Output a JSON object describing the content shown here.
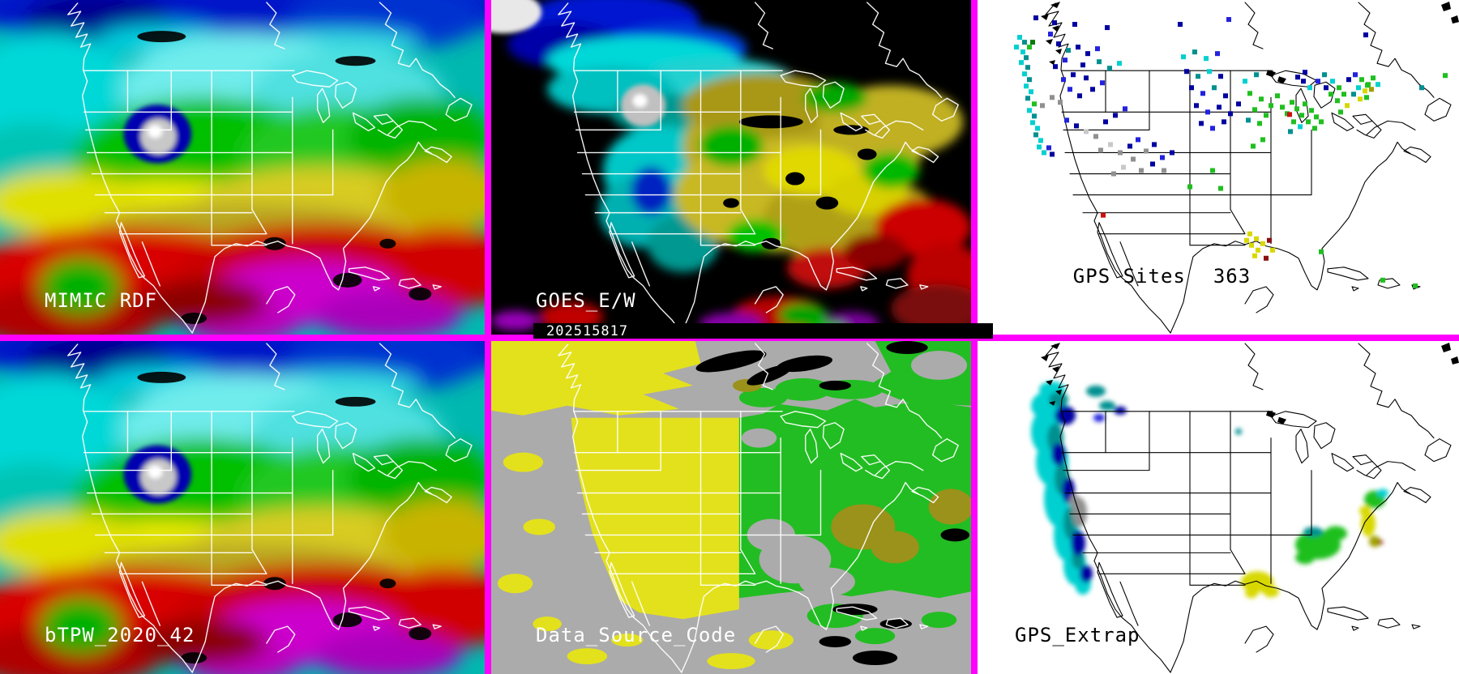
{
  "window": {
    "divider_color": "#ff00ff",
    "layout": "3x2 satellite water-vapor product mosaic"
  },
  "panels": {
    "mimic": {
      "label": "MIMIC RDF"
    },
    "goes": {
      "label": "GOES_E/W",
      "timestamp": "202515817"
    },
    "gps_sites": {
      "label": "GPS Sites",
      "count": "363"
    },
    "btpw": {
      "label": "bTPW_2020_42"
    },
    "data_source": {
      "label": "Data_Source_Code"
    },
    "gps_extrap": {
      "label": "GPS_Extrap"
    }
  },
  "palette": {
    "nv": "#0000a0",
    "bl": "#2222dd",
    "tl": "#009090",
    "cy": "#00d0d0",
    "gn": "#1fbf1f",
    "dg": "#0a7a0a",
    "gy": "#909090",
    "lg": "#c8c8c8",
    "yl": "#d8d800",
    "og": "#a0a000",
    "rd": "#cc1111",
    "dr": "#8b1010",
    "divider": "#ff00ff",
    "dsc_gray": "#ababab",
    "dsc_yellow": "#e3e11c",
    "dsc_green": "#22bd22",
    "dsc_olive": "#9a921a"
  },
  "gps_sites_dots": [
    [
      52,
      46,
      "cy"
    ],
    [
      58,
      52,
      "tl"
    ],
    [
      48,
      58,
      "cy"
    ],
    [
      56,
      64,
      "cy"
    ],
    [
      64,
      58,
      "gn"
    ],
    [
      68,
      52,
      "dg"
    ],
    [
      60,
      71,
      "tl"
    ],
    [
      54,
      77,
      "cy"
    ],
    [
      62,
      83,
      "tl"
    ],
    [
      58,
      91,
      "cy"
    ],
    [
      64,
      98,
      "tl"
    ],
    [
      60,
      106,
      "cy"
    ],
    [
      66,
      113,
      "cy"
    ],
    [
      62,
      121,
      "tl"
    ],
    [
      70,
      128,
      "gn"
    ],
    [
      64,
      136,
      "cy"
    ],
    [
      70,
      143,
      "tl"
    ],
    [
      68,
      151,
      "cy"
    ],
    [
      74,
      158,
      "cy"
    ],
    [
      72,
      166,
      "tl"
    ],
    [
      78,
      173,
      "cy"
    ],
    [
      76,
      181,
      "cy"
    ],
    [
      82,
      188,
      "cy"
    ],
    [
      88,
      182,
      "bl"
    ],
    [
      92,
      190,
      "nv"
    ],
    [
      80,
      130,
      "gy"
    ],
    [
      92,
      120,
      "gy"
    ],
    [
      72,
      22,
      "nv"
    ],
    [
      95,
      28,
      "nv"
    ],
    [
      120,
      30,
      "nv"
    ],
    [
      160,
      34,
      "nv"
    ],
    [
      250,
      30,
      "nv"
    ],
    [
      310,
      24,
      "bl"
    ],
    [
      90,
      42,
      "bl"
    ],
    [
      100,
      54,
      "nv"
    ],
    [
      112,
      62,
      "tl"
    ],
    [
      124,
      58,
      "nv"
    ],
    [
      136,
      66,
      "nv"
    ],
    [
      148,
      60,
      "bl"
    ],
    [
      108,
      74,
      "bl"
    ],
    [
      96,
      82,
      "nv"
    ],
    [
      130,
      80,
      "nv"
    ],
    [
      150,
      76,
      "tl"
    ],
    [
      163,
      84,
      "tl"
    ],
    [
      175,
      78,
      "cy"
    ],
    [
      118,
      92,
      "nv"
    ],
    [
      106,
      98,
      "bl"
    ],
    [
      134,
      96,
      "nv"
    ],
    [
      114,
      110,
      "bl"
    ],
    [
      126,
      118,
      "nv"
    ],
    [
      102,
      126,
      "gy"
    ],
    [
      142,
      110,
      "nv"
    ],
    [
      154,
      102,
      "bl"
    ],
    [
      110,
      148,
      "bl"
    ],
    [
      122,
      155,
      "nv"
    ],
    [
      134,
      162,
      "lg"
    ],
    [
      146,
      168,
      "gy"
    ],
    [
      158,
      150,
      "nv"
    ],
    [
      170,
      142,
      "nv"
    ],
    [
      182,
      134,
      "bl"
    ],
    [
      152,
      185,
      "gy"
    ],
    [
      164,
      178,
      "lg"
    ],
    [
      176,
      188,
      "gy"
    ],
    [
      188,
      180,
      "nv"
    ],
    [
      198,
      172,
      "bl"
    ],
    [
      208,
      186,
      "gy"
    ],
    [
      218,
      178,
      "nv"
    ],
    [
      192,
      196,
      "gy"
    ],
    [
      180,
      206,
      "lg"
    ],
    [
      168,
      214,
      "gy"
    ],
    [
      202,
      210,
      "gy"
    ],
    [
      216,
      202,
      "nv"
    ],
    [
      228,
      194,
      "bl"
    ],
    [
      240,
      188,
      "nv"
    ],
    [
      230,
      210,
      "gy"
    ],
    [
      254,
      70,
      "cy"
    ],
    [
      268,
      64,
      "tl"
    ],
    [
      282,
      72,
      "cy"
    ],
    [
      296,
      66,
      "bl"
    ],
    [
      258,
      88,
      "nv"
    ],
    [
      272,
      94,
      "tl"
    ],
    [
      286,
      88,
      "cy"
    ],
    [
      300,
      94,
      "nv"
    ],
    [
      264,
      108,
      "nv"
    ],
    [
      278,
      115,
      "bl"
    ],
    [
      292,
      108,
      "tl"
    ],
    [
      306,
      118,
      "nv"
    ],
    [
      270,
      130,
      "nv"
    ],
    [
      284,
      138,
      "bl"
    ],
    [
      298,
      132,
      "nv"
    ],
    [
      312,
      140,
      "nv"
    ],
    [
      276,
      152,
      "nv"
    ],
    [
      290,
      158,
      "bl"
    ],
    [
      304,
      150,
      "nv"
    ],
    [
      322,
      128,
      "nv"
    ],
    [
      330,
      100,
      "cy"
    ],
    [
      344,
      92,
      "tl"
    ],
    [
      336,
      115,
      "gn"
    ],
    [
      350,
      122,
      "gn"
    ],
    [
      342,
      135,
      "gn"
    ],
    [
      356,
      142,
      "gn"
    ],
    [
      348,
      152,
      "gn"
    ],
    [
      362,
      130,
      "gn"
    ],
    [
      370,
      118,
      "gn"
    ],
    [
      334,
      148,
      "tl"
    ],
    [
      376,
      132,
      "gn"
    ],
    [
      388,
      126,
      "gn"
    ],
    [
      382,
      140,
      "gn"
    ],
    [
      394,
      134,
      "gn"
    ],
    [
      400,
      142,
      "gn"
    ],
    [
      390,
      150,
      "gn"
    ],
    [
      404,
      128,
      "gn"
    ],
    [
      412,
      136,
      "gn"
    ],
    [
      398,
      156,
      "cy"
    ],
    [
      408,
      150,
      "gn"
    ],
    [
      418,
      144,
      "gn"
    ],
    [
      386,
      162,
      "tl"
    ],
    [
      416,
      158,
      "gn"
    ],
    [
      424,
      150,
      "gn"
    ],
    [
      385,
      141,
      "rd"
    ],
    [
      395,
      95,
      "nv"
    ],
    [
      402,
      100,
      "nv"
    ],
    [
      410,
      108,
      "cy"
    ],
    [
      420,
      100,
      "bl"
    ],
    [
      430,
      108,
      "nv"
    ],
    [
      428,
      92,
      "tl"
    ],
    [
      438,
      100,
      "cy"
    ],
    [
      446,
      108,
      "gn"
    ],
    [
      436,
      116,
      "gn"
    ],
    [
      444,
      124,
      "gn"
    ],
    [
      452,
      116,
      "gn"
    ],
    [
      456,
      130,
      "yl"
    ],
    [
      448,
      138,
      "gn"
    ],
    [
      458,
      98,
      "nv"
    ],
    [
      466,
      92,
      "bl"
    ],
    [
      474,
      98,
      "gn"
    ],
    [
      482,
      104,
      "gn"
    ],
    [
      470,
      108,
      "cy"
    ],
    [
      478,
      112,
      "yl"
    ],
    [
      486,
      110,
      "og"
    ],
    [
      464,
      116,
      "tl"
    ],
    [
      472,
      122,
      "yl"
    ],
    [
      480,
      120,
      "gn"
    ],
    [
      488,
      96,
      "gn"
    ],
    [
      494,
      104,
      "cy"
    ],
    [
      404,
      89,
      "nv"
    ],
    [
      479,
      43,
      "nv"
    ],
    [
      481,
      105,
      "gn"
    ],
    [
      577,
      93,
      "gn"
    ],
    [
      548,
      108,
      "tl"
    ],
    [
      336,
      288,
      "yl"
    ],
    [
      344,
      294,
      "yl"
    ],
    [
      338,
      302,
      "yl"
    ],
    [
      346,
      308,
      "yl"
    ],
    [
      332,
      296,
      "yl"
    ],
    [
      352,
      300,
      "yl"
    ],
    [
      342,
      315,
      "yl"
    ],
    [
      360,
      296,
      "dr"
    ],
    [
      356,
      318,
      "dr"
    ],
    [
      364,
      308,
      "yl"
    ],
    [
      262,
      230,
      "gn"
    ],
    [
      290,
      210,
      "gn"
    ],
    [
      300,
      232,
      "gn"
    ],
    [
      340,
      180,
      "gn"
    ],
    [
      352,
      172,
      "gn"
    ],
    [
      155,
      265,
      "rd"
    ],
    [
      500,
      345,
      "gn"
    ],
    [
      540,
      352,
      "gn"
    ],
    [
      424,
      310,
      "gn"
    ]
  ],
  "gps_extrap_blobs": [
    [
      92,
      60,
      16,
      10,
      "cy"
    ],
    [
      88,
      80,
      22,
      18,
      "cy"
    ],
    [
      84,
      112,
      18,
      28,
      "cy"
    ],
    [
      92,
      150,
      20,
      30,
      "cy"
    ],
    [
      100,
      195,
      18,
      35,
      "cy"
    ],
    [
      110,
      240,
      16,
      32,
      "cy"
    ],
    [
      120,
      278,
      14,
      24,
      "cy"
    ],
    [
      130,
      300,
      10,
      14,
      "cy"
    ],
    [
      100,
      72,
      12,
      9,
      "tl"
    ],
    [
      96,
      120,
      10,
      18,
      "tl"
    ],
    [
      104,
      170,
      9,
      20,
      "tl"
    ],
    [
      114,
      225,
      8,
      20,
      "tl"
    ],
    [
      124,
      268,
      8,
      14,
      "tl"
    ],
    [
      146,
      62,
      12,
      7,
      "tl"
    ],
    [
      160,
      80,
      10,
      6,
      "tl"
    ],
    [
      108,
      92,
      13,
      12,
      "nv"
    ],
    [
      100,
      140,
      9,
      14,
      "nv"
    ],
    [
      112,
      185,
      8,
      16,
      "nv"
    ],
    [
      124,
      250,
      9,
      16,
      "nv"
    ],
    [
      134,
      288,
      8,
      11,
      "nv"
    ],
    [
      176,
      86,
      8,
      5,
      "nv"
    ],
    [
      150,
      95,
      7,
      5,
      "bl"
    ],
    [
      126,
      212,
      9,
      18,
      "gy"
    ],
    [
      120,
      198,
      7,
      8,
      "gy"
    ],
    [
      322,
      112,
      4,
      4,
      "tl"
    ],
    [
      345,
      298,
      20,
      13,
      "yl"
    ],
    [
      362,
      310,
      10,
      7,
      "yl"
    ],
    [
      338,
      312,
      8,
      6,
      "yl"
    ],
    [
      420,
      252,
      28,
      18,
      "gn"
    ],
    [
      442,
      238,
      14,
      9,
      "gn"
    ],
    [
      404,
      268,
      12,
      8,
      "gn"
    ],
    [
      414,
      236,
      12,
      6,
      "tl"
    ],
    [
      490,
      196,
      13,
      11,
      "gn"
    ],
    [
      500,
      188,
      7,
      5,
      "cy"
    ],
    [
      482,
      226,
      9,
      16,
      "yl"
    ],
    [
      478,
      210,
      7,
      6,
      "yl"
    ],
    [
      490,
      248,
      7,
      7,
      "og"
    ],
    [
      497,
      249,
      3,
      3,
      "dr"
    ]
  ]
}
